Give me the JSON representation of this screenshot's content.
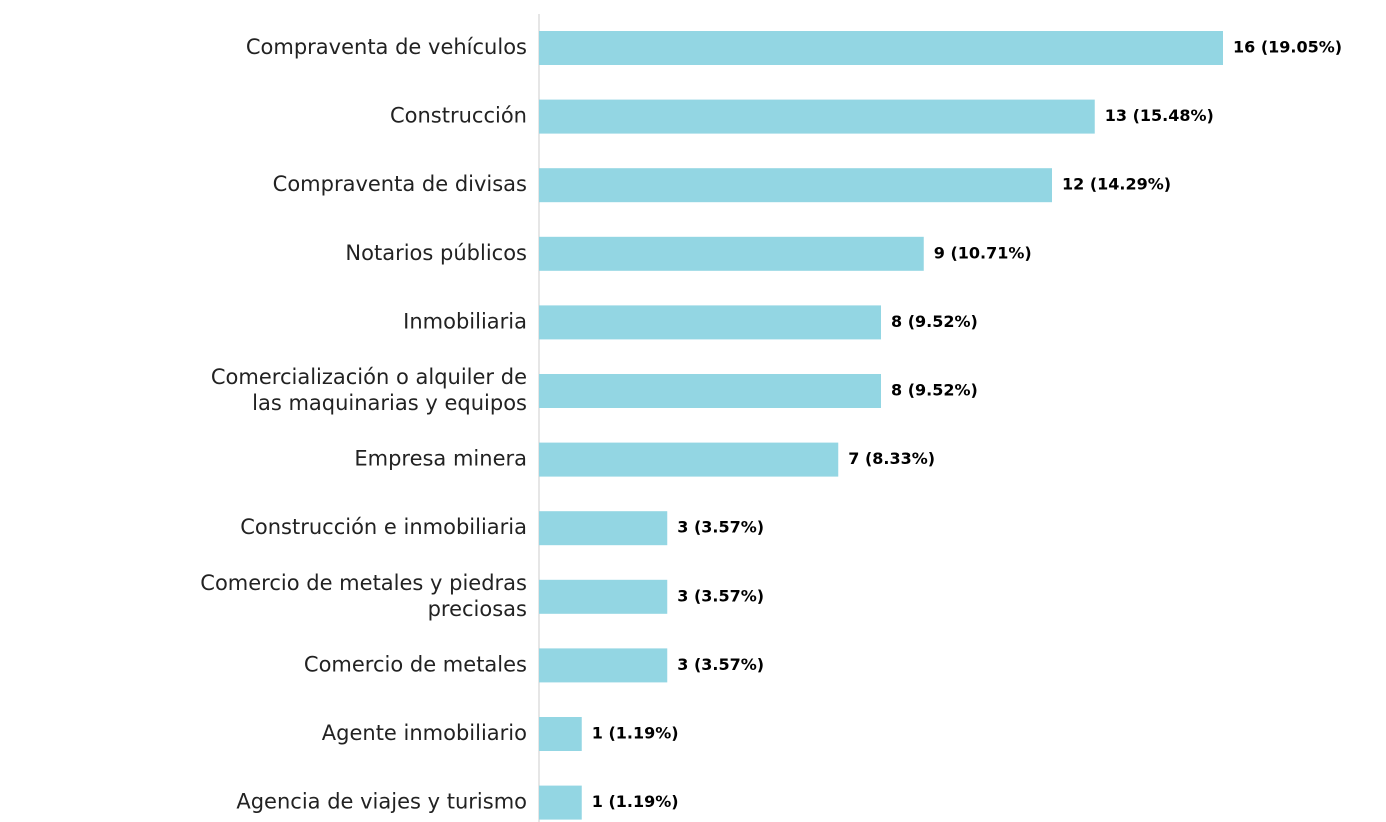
{
  "chart_data": {
    "type": "bar",
    "orientation": "horizontal",
    "color": "#93d6e3",
    "categories": [
      "Compraventa de vehículos",
      "Construcción",
      "Compraventa de divisas",
      "Notarios públicos",
      "Inmobiliaria",
      "Comercialización o alquiler de las maquinarias y equipos",
      "Empresa minera",
      "Construcción e inmobiliaria",
      "Comercio de metales y piedras preciosas",
      "Comercio de metales",
      "Agente inmobiliario",
      "Agencia de viajes y turismo"
    ],
    "values": [
      16,
      13,
      12,
      9,
      8,
      8,
      7,
      3,
      3,
      3,
      1,
      1
    ],
    "value_labels": [
      "16 (19.05%)",
      "13 (15.48%)",
      "12 (14.29%)",
      "9 (10.71%)",
      "8 (9.52%)",
      "8 (9.52%)",
      "7 (8.33%)",
      "3 (3.57%)",
      "3 (3.57%)",
      "3 (3.57%)",
      "1 (1.19%)",
      "1 (1.19%)"
    ]
  }
}
